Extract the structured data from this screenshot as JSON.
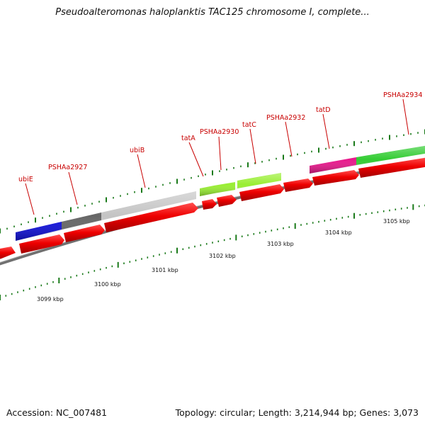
{
  "title": "Pseudoalteromonas haloplanktis TAC125 chromosome I, complete...",
  "footer": {
    "accession": "Accession: NC_007481",
    "summary": "Topology: circular; Length: 3,214,944 bp; Genes: 3,073"
  },
  "colors": {
    "cds": "#ee0000",
    "backbone": "#808080",
    "ticks": "#1a7a1a",
    "labels": "#c80000"
  },
  "scale_labels": [
    {
      "text": "3099 kbp",
      "kbp": 3099
    },
    {
      "text": "3100 kbp",
      "kbp": 3100
    },
    {
      "text": "3101 kbp",
      "kbp": 3101
    },
    {
      "text": "3102 kbp",
      "kbp": 3102
    },
    {
      "text": "3103 kbp",
      "kbp": 3103
    },
    {
      "text": "3104 kbp",
      "kbp": 3104
    },
    {
      "text": "3105 kbp",
      "kbp": 3105
    }
  ],
  "genes": [
    {
      "label": "ubiE",
      "color": "#1010dd"
    },
    {
      "label": "PSHAa2927",
      "color": "#666666"
    },
    {
      "label": "ubiB",
      "color": "#c4c4c4"
    },
    {
      "label": "tatA",
      "color": "#99ee33"
    },
    {
      "label": "PSHAa2930",
      "color": "#99ee33"
    },
    {
      "label": "tatC",
      "color": "#99ee33"
    },
    {
      "label": "PSHAa2932",
      "color": "#99ee33"
    },
    {
      "label": "tatD",
      "color": "#e8188c"
    },
    {
      "label": "PSHAa2934",
      "color": "#33cc33"
    }
  ]
}
